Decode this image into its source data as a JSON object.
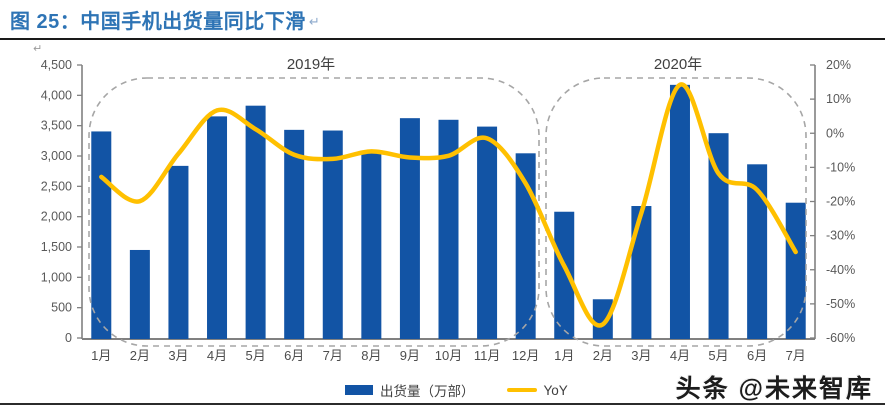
{
  "page": {
    "title": "图 25：中国手机出货量同比下滑",
    "return_mark": "↵",
    "watermark": "头条 @未来智库"
  },
  "colors": {
    "title_blue": "#2E74B5",
    "bar_blue": "#1254A5",
    "line_yellow": "#FFC000",
    "axis_gray": "#808080",
    "label_gray": "#595959",
    "dash_gray": "#A6A6A6"
  },
  "chart_data": {
    "type": "bar+line",
    "title": "图 25：中国手机出货量同比下滑",
    "categories": [
      "1月",
      "2月",
      "3月",
      "4月",
      "5月",
      "6月",
      "7月",
      "8月",
      "9月",
      "10月",
      "11月",
      "12月",
      "1月",
      "2月",
      "3月",
      "4月",
      "5月",
      "6月",
      "7月"
    ],
    "group_labels": [
      "2019年",
      "2020年"
    ],
    "series": [
      {
        "name": "出货量（万部）",
        "type": "bar",
        "axis": "left",
        "color": "#1254A5",
        "values": [
          3404.8,
          1451.1,
          2837.3,
          3653.1,
          3829.4,
          3431.0,
          3419.9,
          3087.5,
          3623.6,
          3596.9,
          3484.6,
          3044.4,
          2081.3,
          638.4,
          2175.6,
          4172.8,
          3375.9,
          2863.0,
          2230.1
        ]
      },
      {
        "name": "YoY",
        "type": "line",
        "axis": "right",
        "color": "#FFC000",
        "values": [
          -12.8,
          -19.9,
          -6.0,
          6.7,
          1.2,
          -6.3,
          -7.5,
          -5.3,
          -7.1,
          -6.6,
          -1.5,
          -14.7,
          -38.9,
          -56.0,
          -23.3,
          14.2,
          -11.8,
          -16.6,
          -34.8
        ]
      }
    ],
    "left_axis": {
      "min": 0,
      "max": 4500,
      "step": 500,
      "tick_labels": [
        "4,500",
        "4,000",
        "3,500",
        "3,000",
        "2,500",
        "2,000",
        "1,500",
        "1,000",
        "500",
        "0"
      ]
    },
    "right_axis": {
      "min": -60,
      "max": 20,
      "step": 10,
      "tick_labels": [
        "20%",
        "10%",
        "0%",
        "-10%",
        "-20%",
        "-30%",
        "-40%",
        "-50%",
        "-60%"
      ]
    },
    "legend": {
      "position": "bottom",
      "entries": [
        "出货量（万部）",
        "YoY"
      ]
    },
    "grid": false,
    "annotations": [
      "2019年区域虚线框",
      "2020年区域虚线框"
    ]
  }
}
